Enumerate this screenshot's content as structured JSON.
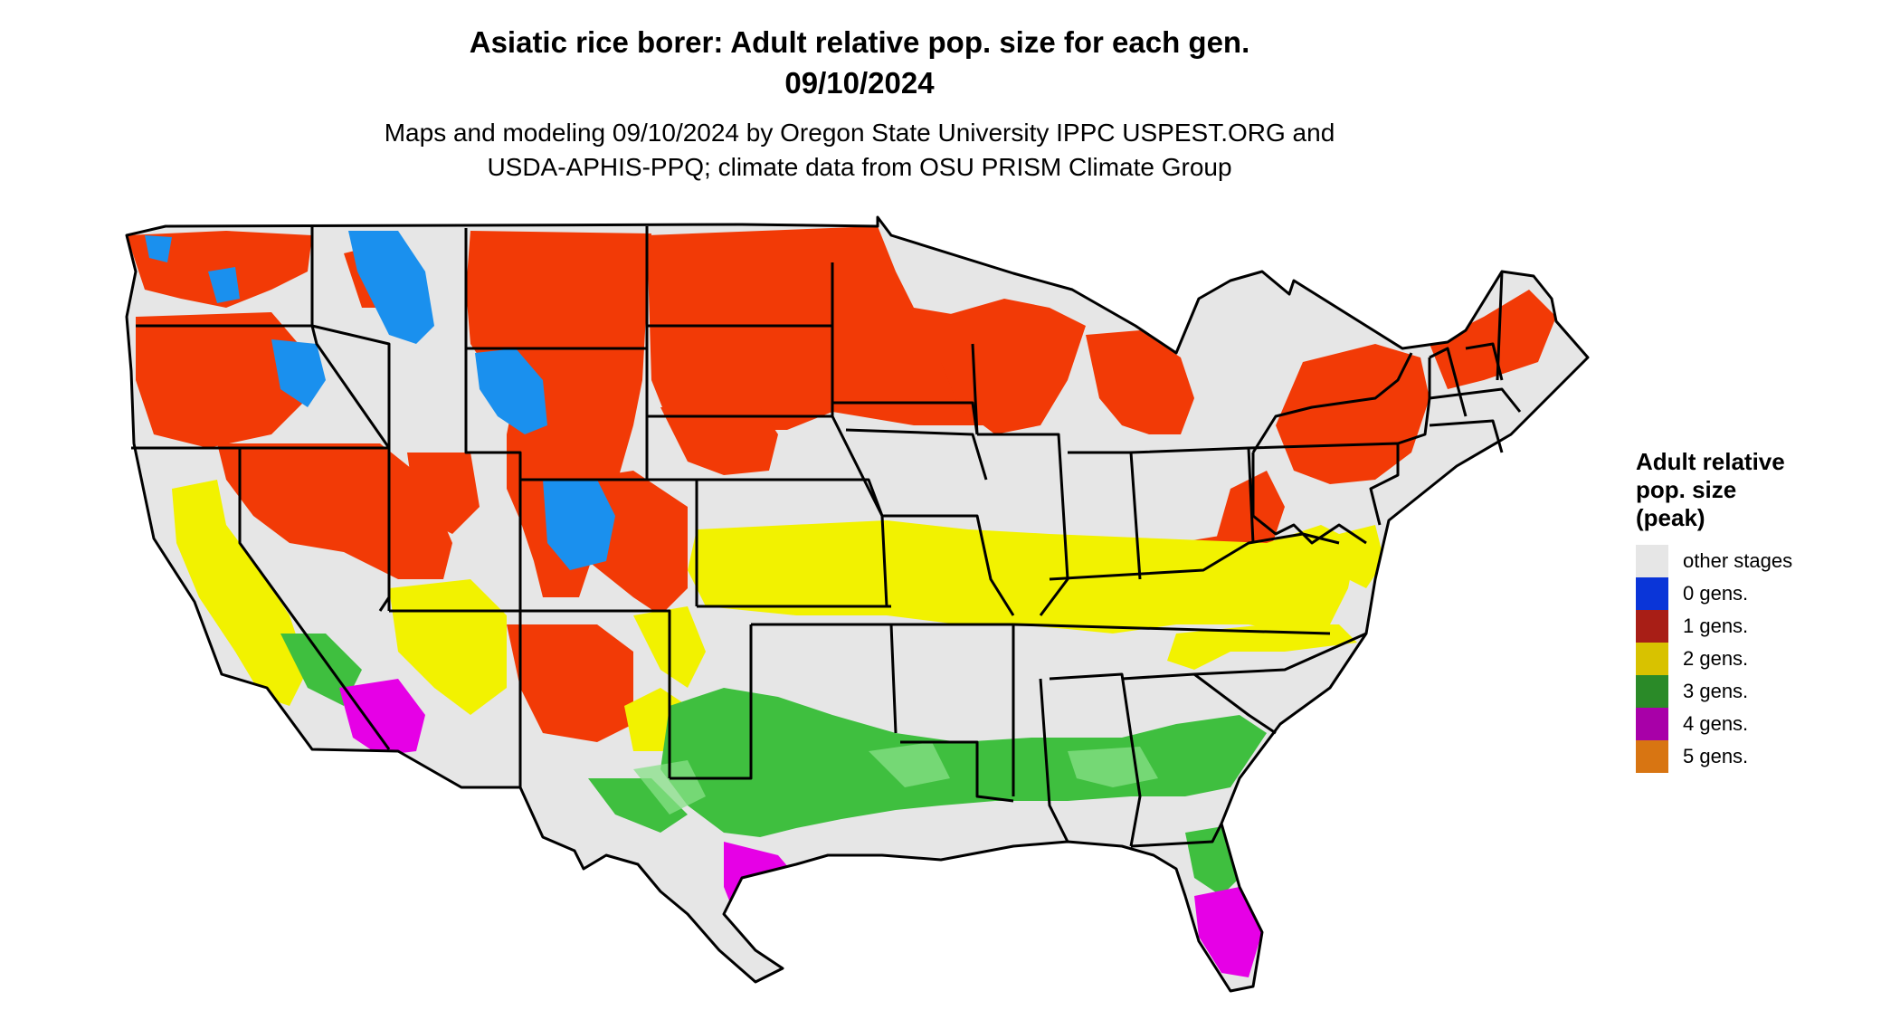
{
  "title": {
    "line1": "Asiatic rice borer: Adult relative pop. size for each gen.",
    "line2": "09/10/2024"
  },
  "subtitle": {
    "line1": "Maps and modeling 09/10/2024 by Oregon State University IPPC USPEST.ORG and",
    "line2": "USDA-APHIS-PPQ; climate data from OSU PRISM Climate Group"
  },
  "legend": {
    "title_line1": "Adult relative",
    "title_line2": "pop. size",
    "title_line3": "(peak)",
    "items": [
      {
        "label": "other stages",
        "color": "#e6e6e6"
      },
      {
        "label": "0 gens.",
        "color": "#0a35d8"
      },
      {
        "label": "1 gens.",
        "color": "#a81e16"
      },
      {
        "label": "2 gens.",
        "color": "#d8c200"
      },
      {
        "label": "3 gens.",
        "color": "#2a8a28"
      },
      {
        "label": "4 gens.",
        "color": "#a800a8"
      },
      {
        "label": "5 gens.",
        "color": "#d87512"
      }
    ]
  },
  "map_colors": {
    "land": "#e6e6e6",
    "gen0": "#1a90ee",
    "gen1": "#f23a06",
    "gen2": "#f2f200",
    "gen3": "#3fbf3f",
    "gen3_light": "#88e088",
    "gen4": "#e600e6",
    "border": "#000000"
  }
}
